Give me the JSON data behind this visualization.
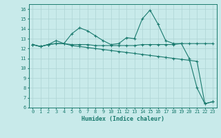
{
  "xlabel": "Humidex (Indice chaleur)",
  "ylabel": "",
  "background_color": "#c8eaea",
  "grid_color": "#aed4d4",
  "line_color": "#1a7a6e",
  "xlim": [
    -0.5,
    23.5
  ],
  "ylim": [
    6,
    16.5
  ],
  "x_ticks": [
    0,
    1,
    2,
    3,
    4,
    5,
    6,
    7,
    8,
    9,
    10,
    11,
    12,
    13,
    14,
    15,
    16,
    17,
    18,
    19,
    20,
    21,
    22,
    23
  ],
  "y_ticks": [
    6,
    7,
    8,
    9,
    10,
    11,
    12,
    13,
    14,
    15,
    16
  ],
  "series": [
    {
      "x": [
        0,
        1,
        2,
        3,
        4,
        5,
        6,
        7,
        8,
        9,
        10,
        11,
        12,
        13,
        14,
        15,
        16,
        17,
        18,
        19,
        20,
        21,
        22,
        23
      ],
      "y": [
        12.4,
        12.2,
        12.4,
        12.8,
        12.5,
        13.5,
        14.1,
        13.8,
        13.3,
        12.8,
        12.4,
        12.5,
        13.1,
        13.0,
        15.0,
        15.9,
        14.5,
        12.8,
        12.5,
        12.5,
        11.0,
        8.0,
        6.4,
        6.6
      ]
    },
    {
      "x": [
        0,
        1,
        2,
        3,
        4,
        5,
        6,
        7,
        8,
        9,
        10,
        11,
        12,
        13,
        14,
        15,
        16,
        17,
        18,
        19,
        20,
        21,
        22,
        23
      ],
      "y": [
        12.4,
        12.2,
        12.4,
        12.5,
        12.5,
        12.4,
        12.4,
        12.4,
        12.3,
        12.3,
        12.3,
        12.3,
        12.3,
        12.3,
        12.4,
        12.4,
        12.4,
        12.4,
        12.4,
        12.5,
        12.5,
        12.5,
        12.5,
        12.5
      ]
    },
    {
      "x": [
        0,
        1,
        2,
        3,
        4,
        5,
        6,
        7,
        8,
        9,
        10,
        11,
        12,
        13,
        14,
        15,
        16,
        17,
        18,
        19,
        20,
        21,
        22,
        23
      ],
      "y": [
        12.4,
        12.2,
        12.4,
        12.5,
        12.5,
        12.3,
        12.2,
        12.1,
        12.0,
        11.9,
        11.8,
        11.7,
        11.6,
        11.5,
        11.4,
        11.3,
        11.2,
        11.1,
        11.0,
        10.9,
        10.8,
        10.7,
        6.4,
        6.6
      ]
    }
  ]
}
